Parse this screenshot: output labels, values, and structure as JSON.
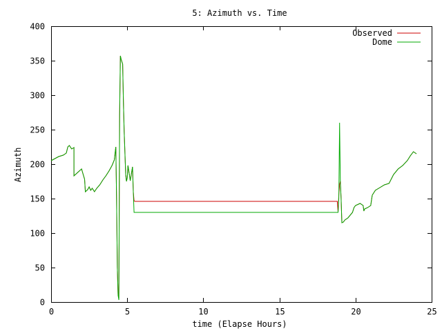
{
  "chart_data": {
    "type": "line",
    "title": "5: Azimuth vs. Time",
    "xlabel": "time (Elapse Hours)",
    "ylabel": "Azimuth",
    "xlim": [
      0,
      25
    ],
    "ylim": [
      0,
      400
    ],
    "x_ticks": [
      0,
      5,
      10,
      15,
      20,
      25
    ],
    "x_tick_labels": [
      "0",
      "5",
      "10",
      "15",
      "20",
      "25"
    ],
    "y_ticks": [
      0,
      50,
      100,
      150,
      200,
      250,
      300,
      350,
      400
    ],
    "y_tick_labels": [
      "0",
      "50",
      "100",
      "150",
      "200",
      "250",
      "300",
      "350",
      "400"
    ],
    "grid": false,
    "legend": "top-right",
    "series": [
      {
        "name": "Observed",
        "color": "#cc0000",
        "x": [
          0,
          0.5,
          0.8,
          1.0,
          1.1,
          1.2,
          1.35,
          1.5,
          1.5,
          1.7,
          2.0,
          2.2,
          2.25,
          2.4,
          2.5,
          2.6,
          2.7,
          2.85,
          3.0,
          3.2,
          3.4,
          3.6,
          3.8,
          4.0,
          4.15,
          4.25,
          4.3,
          4.35,
          4.4,
          4.45,
          4.5,
          4.55,
          4.6,
          4.7,
          4.75,
          4.8,
          4.9,
          4.95,
          5.0,
          5.05,
          5.2,
          5.35,
          5.4,
          5.45,
          5.5,
          10.5,
          18.8,
          18.85,
          18.9,
          18.95,
          19.0,
          19.05,
          19.1,
          19.2,
          19.3,
          19.5,
          19.8,
          19.9,
          20.0,
          20.3,
          20.5,
          20.55,
          20.6,
          20.8,
          21.0,
          21.1,
          21.3,
          21.6,
          21.9,
          22.2,
          22.5,
          22.8,
          23.1,
          23.4,
          23.6,
          23.8,
          24.0
        ],
        "y": [
          205,
          211,
          213,
          216,
          225,
          227,
          222,
          224,
          183,
          187,
          193,
          178,
          160,
          163,
          167,
          162,
          165,
          160,
          165,
          170,
          177,
          183,
          190,
          198,
          206,
          225,
          150,
          50,
          10,
          5,
          270,
          357,
          352,
          345,
          290,
          247,
          185,
          175,
          180,
          198,
          176,
          196,
          160,
          147,
          146,
          146,
          146,
          131,
          155,
          170,
          175,
          150,
          115,
          116,
          119,
          122,
          130,
          137,
          140,
          143,
          140,
          132,
          135,
          137,
          140,
          155,
          162,
          166,
          170,
          172,
          185,
          193,
          198,
          205,
          212,
          218,
          215
        ]
      },
      {
        "name": "Dome",
        "color": "#00aa00",
        "x": [
          0,
          0.5,
          0.8,
          1.0,
          1.1,
          1.2,
          1.35,
          1.5,
          1.5,
          1.7,
          2.0,
          2.2,
          2.25,
          2.4,
          2.5,
          2.6,
          2.7,
          2.85,
          3.0,
          3.2,
          3.4,
          3.6,
          3.8,
          4.0,
          4.15,
          4.25,
          4.3,
          4.35,
          4.4,
          4.45,
          4.5,
          4.55,
          4.6,
          4.7,
          4.75,
          4.8,
          4.9,
          4.95,
          5.0,
          5.05,
          5.2,
          5.35,
          5.4,
          5.45,
          5.5,
          18.8,
          18.85,
          18.9,
          18.95,
          19.0,
          19.05,
          19.1,
          19.2,
          19.3,
          19.5,
          19.8,
          19.9,
          20.0,
          20.3,
          20.5,
          20.55,
          20.6,
          20.8,
          21.0,
          21.1,
          21.3,
          21.6,
          21.9,
          22.2,
          22.5,
          22.8,
          23.1,
          23.4,
          23.6,
          23.8,
          24.0
        ],
        "y": [
          205,
          211,
          213,
          216,
          225,
          227,
          222,
          224,
          183,
          187,
          193,
          178,
          160,
          163,
          167,
          162,
          165,
          160,
          165,
          170,
          177,
          183,
          190,
          198,
          206,
          225,
          150,
          50,
          10,
          3,
          270,
          357,
          352,
          345,
          290,
          247,
          185,
          175,
          180,
          198,
          176,
          196,
          160,
          130,
          130,
          130,
          130,
          150,
          260,
          175,
          150,
          115,
          116,
          119,
          122,
          130,
          137,
          140,
          143,
          140,
          132,
          135,
          137,
          140,
          155,
          162,
          166,
          170,
          172,
          185,
          193,
          198,
          205,
          212,
          218,
          215
        ]
      }
    ]
  }
}
